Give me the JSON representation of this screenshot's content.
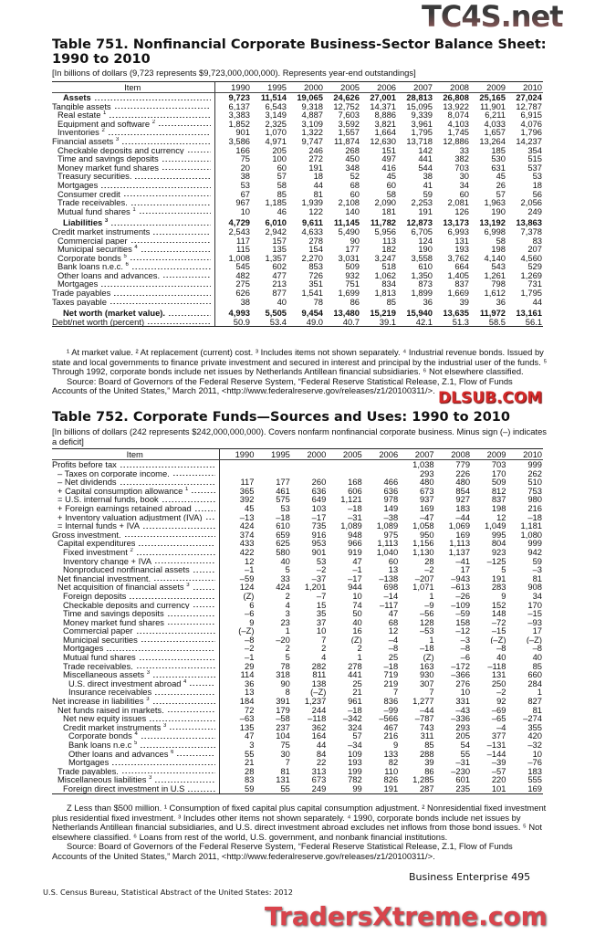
{
  "watermarks": {
    "top": "TC4S.net",
    "middle": "DLSUB.COM",
    "bottom": "TradersXtreme.com"
  },
  "table751": {
    "title": "Table 751. Nonfinancial Corporate Business-Sector Balance Sheet: 1990 to 2010",
    "subtitle": "[In billions of dollars (9,723 represents $9,723,000,000,000). Represents year-end outstandings]",
    "item_header": "Item",
    "years": [
      "1990",
      "1995",
      "2000",
      "2005",
      "2006",
      "2007",
      "2008",
      "2009",
      "2010"
    ],
    "rows": [
      {
        "label": "Assets",
        "indent": 2,
        "bold": true,
        "values": [
          "9,723",
          "11,514",
          "19,065",
          "24,626",
          "27,001",
          "28,813",
          "26,808",
          "25,165",
          "27,024"
        ]
      },
      {
        "label": "Tangible assets",
        "indent": 0,
        "values": [
          "6,137",
          "6,543",
          "9,318",
          "12,752",
          "14,371",
          "15,095",
          "13,922",
          "11,901",
          "12,787"
        ]
      },
      {
        "label": "Real estate",
        "sup": "1",
        "indent": 1,
        "values": [
          "3,383",
          "3,149",
          "4,887",
          "7,603",
          "8,886",
          "9,339",
          "8,074",
          "6,211",
          "6,915"
        ]
      },
      {
        "label": "Equipment and software",
        "sup": "2",
        "indent": 1,
        "values": [
          "1,852",
          "2,325",
          "3,109",
          "3,592",
          "3,821",
          "3,961",
          "4,103",
          "4,033",
          "4,076"
        ]
      },
      {
        "label": "Inventories",
        "sup": "2",
        "indent": 1,
        "values": [
          "901",
          "1,070",
          "1,322",
          "1,557",
          "1,664",
          "1,795",
          "1,745",
          "1,657",
          "1,796"
        ]
      },
      {
        "label": "Financial assets",
        "sup": "3",
        "indent": 0,
        "values": [
          "3,586",
          "4,971",
          "9,747",
          "11,874",
          "12,630",
          "13,718",
          "12,886",
          "13,264",
          "14,237"
        ]
      },
      {
        "label": "Checkable deposits and currency",
        "indent": 1,
        "values": [
          "166",
          "205",
          "246",
          "268",
          "151",
          "142",
          "33",
          "185",
          "354"
        ]
      },
      {
        "label": "Time and savings deposits",
        "indent": 1,
        "values": [
          "75",
          "100",
          "272",
          "450",
          "497",
          "441",
          "382",
          "530",
          "515"
        ]
      },
      {
        "label": "Money market fund shares",
        "indent": 1,
        "values": [
          "20",
          "60",
          "191",
          "348",
          "416",
          "544",
          "703",
          "631",
          "537"
        ]
      },
      {
        "label": "Treasury securities.",
        "indent": 1,
        "values": [
          "38",
          "57",
          "18",
          "52",
          "45",
          "38",
          "30",
          "45",
          "53"
        ]
      },
      {
        "label": "Mortgages",
        "indent": 1,
        "values": [
          "53",
          "58",
          "44",
          "68",
          "60",
          "41",
          "34",
          "26",
          "18"
        ]
      },
      {
        "label": "Consumer credit",
        "indent": 1,
        "values": [
          "67",
          "85",
          "81",
          "60",
          "58",
          "59",
          "60",
          "57",
          "56"
        ]
      },
      {
        "label": "Trade receivables.",
        "indent": 1,
        "values": [
          "967",
          "1,185",
          "1,939",
          "2,108",
          "2,090",
          "2,253",
          "2,081",
          "1,963",
          "2,056"
        ]
      },
      {
        "label": "Mutual fund shares",
        "sup": "1",
        "indent": 1,
        "values": [
          "10",
          "46",
          "122",
          "140",
          "181",
          "191",
          "126",
          "190",
          "249"
        ]
      },
      {
        "label": "Liabilities",
        "sup": "3",
        "indent": 2,
        "bold": true,
        "gap": true,
        "values": [
          "4,729",
          "6,010",
          "9,611",
          "11,145",
          "11,782",
          "12,873",
          "13,173",
          "13,192",
          "13,863"
        ]
      },
      {
        "label": "Credit market instruments",
        "indent": 0,
        "values": [
          "2,543",
          "2,942",
          "4,633",
          "5,490",
          "5,956",
          "6,705",
          "6,993",
          "6,998",
          "7,378"
        ]
      },
      {
        "label": "Commercial paper",
        "indent": 1,
        "values": [
          "117",
          "157",
          "278",
          "90",
          "113",
          "124",
          "131",
          "58",
          "83"
        ]
      },
      {
        "label": "Municipal securities",
        "sup": "4",
        "indent": 1,
        "values": [
          "115",
          "135",
          "154",
          "177",
          "182",
          "190",
          "193",
          "198",
          "207"
        ]
      },
      {
        "label": "Corporate bonds",
        "sup": "5",
        "indent": 1,
        "values": [
          "1,008",
          "1,357",
          "2,270",
          "3,031",
          "3,247",
          "3,558",
          "3,762",
          "4,140",
          "4,560"
        ]
      },
      {
        "label": "Bank loans n.e.c.",
        "sup": "6",
        "indent": 1,
        "values": [
          "545",
          "602",
          "853",
          "509",
          "518",
          "610",
          "664",
          "543",
          "529"
        ]
      },
      {
        "label": "Other loans and advances.",
        "indent": 1,
        "values": [
          "482",
          "477",
          "726",
          "932",
          "1,062",
          "1,350",
          "1,405",
          "1,261",
          "1,269"
        ]
      },
      {
        "label": "Mortgages",
        "indent": 1,
        "values": [
          "275",
          "213",
          "351",
          "751",
          "834",
          "873",
          "837",
          "798",
          "731"
        ]
      },
      {
        "label": "Trade payables",
        "indent": 0,
        "values": [
          "626",
          "877",
          "1,541",
          "1,699",
          "1,813",
          "1,899",
          "1,669",
          "1,612",
          "1,795"
        ]
      },
      {
        "label": "Taxes payable",
        "indent": 0,
        "values": [
          "38",
          "40",
          "78",
          "86",
          "85",
          "36",
          "39",
          "36",
          "44"
        ]
      },
      {
        "label": "Net worth (market value).",
        "indent": 2,
        "bold": true,
        "gap": true,
        "values": [
          "4,993",
          "5,505",
          "9,454",
          "13,480",
          "15,219",
          "15,940",
          "13,635",
          "11,972",
          "13,161"
        ]
      },
      {
        "label": "Debt/net worth (percent)",
        "indent": 0,
        "values": [
          "50.9",
          "53.4",
          "49.0",
          "40.7",
          "39.1",
          "42.1",
          "51.3",
          "58.5",
          "56.1"
        ]
      }
    ],
    "footnotes": "¹ At market value. ² At replacement (current) cost. ³ Includes items not shown separately. ⁴ Industrial revenue bonds. Issued by state and local governments to finance  private investment and secured in interest and principal by the industrial user of the funds. ⁵ Through 1992, corporate bonds include net issues by Netherlands Antillean financial subsidiaries. ⁶ Not elsewhere classified.",
    "source": "Source: Board of Governors of the Federal Reserve System, “Federal Reserve Statistical Release, Z.1, Flow of Funds Accounts of the United States,” March 2011, <http://www.federalreserve.gov/releases/z1/20100311/>."
  },
  "table752": {
    "title": "Table 752. Corporate Funds—Sources and Uses: 1990 to 2010",
    "subtitle": "[In billions of dollars (242 represents $242,000,000,000). Covers nonfarm nonfinancial corporate business. Minus sign (–) indicates a deficit]",
    "item_header": "Item",
    "years": [
      "1990",
      "1995",
      "2000",
      "2005",
      "2006",
      "2007",
      "2008",
      "2009",
      "2010"
    ],
    "rows": [
      {
        "label": "Profits before tax",
        "indent": 0,
        "values": [
          "",
          "",
          "",
          "",
          "",
          "1,038",
          "779",
          "703",
          "999"
        ]
      },
      {
        "label": "– Taxes on corporate income.",
        "indent": 1,
        "values": [
          "",
          "",
          "",
          "",
          "",
          "293",
          "226",
          "170",
          "262"
        ]
      },
      {
        "label": "– Net dividends",
        "indent": 1,
        "values": [
          "117",
          "177",
          "260",
          "168",
          "466",
          "480",
          "480",
          "509",
          "510"
        ]
      },
      {
        "label": "+ Capital consumption allowance",
        "sup": "1",
        "indent": 1,
        "values": [
          "365",
          "461",
          "636",
          "606",
          "636",
          "673",
          "854",
          "812",
          "753"
        ]
      },
      {
        "label": "= U.S. internal funds, book",
        "indent": 1,
        "values": [
          "392",
          "575",
          "649",
          "1,121",
          "978",
          "937",
          "927",
          "837",
          "980"
        ]
      },
      {
        "label": "+ Foreign earnings retained abroad",
        "indent": 1,
        "values": [
          "45",
          "53",
          "103",
          "–18",
          "149",
          "169",
          "183",
          "198",
          "216"
        ]
      },
      {
        "label": "+ Inventory valuation adjustment (IVA)",
        "indent": 1,
        "values": [
          "–13",
          "–18",
          "–17",
          "–31",
          "–38",
          "–47",
          "–44",
          "12",
          "–18"
        ]
      },
      {
        "label": "= Internal funds + IVA",
        "indent": 1,
        "values": [
          "424",
          "610",
          "735",
          "1,089",
          "1,089",
          "1,058",
          "1,069",
          "1,049",
          "1,181"
        ]
      },
      {
        "label": "Gross investment.",
        "indent": 0,
        "values": [
          "374",
          "659",
          "916",
          "948",
          "975",
          "950",
          "169",
          "995",
          "1,080"
        ]
      },
      {
        "label": "Capital expenditures",
        "indent": 1,
        "values": [
          "433",
          "625",
          "953",
          "966",
          "1,113",
          "1,156",
          "1,113",
          "804",
          "999"
        ]
      },
      {
        "label": "Fixed investment",
        "sup": "2",
        "indent": 2,
        "values": [
          "422",
          "580",
          "901",
          "919",
          "1,040",
          "1,130",
          "1,137",
          "923",
          "942"
        ]
      },
      {
        "label": "Inventory change + IVA",
        "indent": 2,
        "values": [
          "12",
          "40",
          "53",
          "47",
          "60",
          "28",
          "–41",
          "–125",
          "59"
        ]
      },
      {
        "label": "Nonproduced nonfinancial assets",
        "indent": 2,
        "values": [
          "–1",
          "5",
          "–2",
          "–1",
          "13",
          "–2",
          "17",
          "5",
          "–3"
        ]
      },
      {
        "label": "Net financial investment.",
        "indent": 1,
        "values": [
          "–59",
          "33",
          "–37",
          "–17",
          "–138",
          "–207",
          "–943",
          "191",
          "81"
        ]
      },
      {
        "label": "Net acquisition of financial assets",
        "sup": "3",
        "indent": 1,
        "values": [
          "124",
          "424",
          "1,201",
          "944",
          "698",
          "1,071",
          "–613",
          "283",
          "908"
        ]
      },
      {
        "label": "Foreign deposits",
        "indent": 2,
        "values": [
          "(Z)",
          "2",
          "–7",
          "10",
          "–14",
          "1",
          "–26",
          "9",
          "34"
        ]
      },
      {
        "label": "Checkable deposits and currency",
        "indent": 2,
        "values": [
          "6",
          "4",
          "15",
          "74",
          "–117",
          "–9",
          "–109",
          "152",
          "170"
        ]
      },
      {
        "label": "Time and savings deposits",
        "indent": 2,
        "values": [
          "–6",
          "3",
          "35",
          "50",
          "47",
          "–56",
          "–59",
          "148",
          "–15"
        ]
      },
      {
        "label": "Money market fund shares",
        "indent": 2,
        "values": [
          "9",
          "23",
          "37",
          "40",
          "68",
          "128",
          "158",
          "–72",
          "–93"
        ]
      },
      {
        "label": "Commercial paper",
        "indent": 2,
        "values": [
          "(–Z)",
          "1",
          "10",
          "16",
          "12",
          "–53",
          "–12",
          "–15",
          "17"
        ]
      },
      {
        "label": "Municipal securities",
        "indent": 2,
        "values": [
          "–8",
          "–20",
          "7",
          "(Z)",
          "–4",
          "1",
          "–3",
          "(–Z)",
          "(–Z)"
        ]
      },
      {
        "label": "Mortgages",
        "indent": 2,
        "values": [
          "–2",
          "2",
          "2",
          "2",
          "–8",
          "–18",
          "–8",
          "–8",
          "–8"
        ]
      },
      {
        "label": "Mutual fund shares",
        "indent": 2,
        "values": [
          "–1",
          "5",
          "4",
          "1",
          "25",
          "(Z)",
          "–6",
          "40",
          "40"
        ]
      },
      {
        "label": "Trade receivables.",
        "indent": 2,
        "values": [
          "29",
          "78",
          "282",
          "278",
          "–18",
          "163",
          "–172",
          "–118",
          "85"
        ]
      },
      {
        "label": "Miscellaneous assets",
        "sup": "3",
        "indent": 2,
        "values": [
          "114",
          "318",
          "811",
          "441",
          "719",
          "930",
          "–366",
          "131",
          "660"
        ]
      },
      {
        "label": "U.S. direct investment abroad",
        "sup": "4",
        "indent": 3,
        "values": [
          "36",
          "90",
          "138",
          "25",
          "219",
          "307",
          "276",
          "250",
          "284"
        ]
      },
      {
        "label": "Insurance receivables",
        "indent": 3,
        "values": [
          "13",
          "8",
          "(–Z)",
          "21",
          "7",
          "7",
          "10",
          "–2",
          "1"
        ]
      },
      {
        "label": "Net increase in liabilities",
        "sup": "3",
        "indent": 0,
        "values": [
          "184",
          "391",
          "1,237",
          "961",
          "836",
          "1,277",
          "331",
          "92",
          "827"
        ]
      },
      {
        "label": "Net funds raised in markets.",
        "indent": 1,
        "values": [
          "72",
          "179",
          "244",
          "–18",
          "–99",
          "–44",
          "–43",
          "–69",
          "81"
        ]
      },
      {
        "label": "Net new equity issues",
        "indent": 2,
        "values": [
          "–63",
          "–58",
          "–118",
          "–342",
          "–566",
          "–787",
          "–336",
          "–65",
          "–274"
        ]
      },
      {
        "label": "Credit market instruments",
        "sup": "3",
        "indent": 2,
        "values": [
          "135",
          "237",
          "362",
          "324",
          "467",
          "743",
          "293",
          "–4",
          "355"
        ]
      },
      {
        "label": "Corporate bonds",
        "sup": "4",
        "indent": 3,
        "values": [
          "47",
          "104",
          "164",
          "57",
          "216",
          "311",
          "205",
          "377",
          "420"
        ]
      },
      {
        "label": "Bank loans n.e.c",
        "sup": "5",
        "indent": 3,
        "values": [
          "3",
          "75",
          "44",
          "–34",
          "9",
          "85",
          "54",
          "–131",
          "–32"
        ]
      },
      {
        "label": "Other loans and advances",
        "sup": "6",
        "indent": 3,
        "values": [
          "55",
          "30",
          "84",
          "109",
          "133",
          "288",
          "55",
          "–144",
          "10"
        ]
      },
      {
        "label": "Mortgages",
        "indent": 3,
        "values": [
          "21",
          "7",
          "22",
          "193",
          "82",
          "39",
          "–31",
          "–39",
          "–76"
        ]
      },
      {
        "label": "Trade payables.",
        "indent": 1,
        "values": [
          "28",
          "81",
          "313",
          "199",
          "110",
          "86",
          "–230",
          "–57",
          "183"
        ]
      },
      {
        "label": "Miscellaneous liabilities",
        "sup": "3",
        "indent": 1,
        "values": [
          "83",
          "131",
          "673",
          "782",
          "826",
          "1,285",
          "601",
          "220",
          "555"
        ]
      },
      {
        "label": "Foreign direct investment in U.S",
        "indent": 2,
        "values": [
          "59",
          "55",
          "249",
          "99",
          "191",
          "287",
          "235",
          "101",
          "169"
        ]
      }
    ],
    "footnotes": "Z Less than $500 million. ¹ Consumption of fixed capital plus capital consumption adjustment. ² Nonresidential fixed investment plus residential fixed investment. ³ Includes other items not shown separately. ⁴ 1990, corporate bonds include net issues by Netherlands Antillean financial subsidiaries, and U.S. direct investment abroad excludes net inflows from those bond issues. ⁵ Not elsewhere classified. ⁶ Loans from rest of the world, U.S. government, and nonbank financial institutions.",
    "source": "Source: Board of Governors of the Federal Reserve System, “Federal Reserve Statistical Release, Z.1, Flow of Funds Accounts of the United States,” March 2011, <http://www.federalreserve.gov/releases/z1/20100311/>."
  },
  "footer": {
    "section": "Business Enterprise  495",
    "publication": "U.S. Census Bureau, Statistical Abstract of the United States: 2012"
  }
}
